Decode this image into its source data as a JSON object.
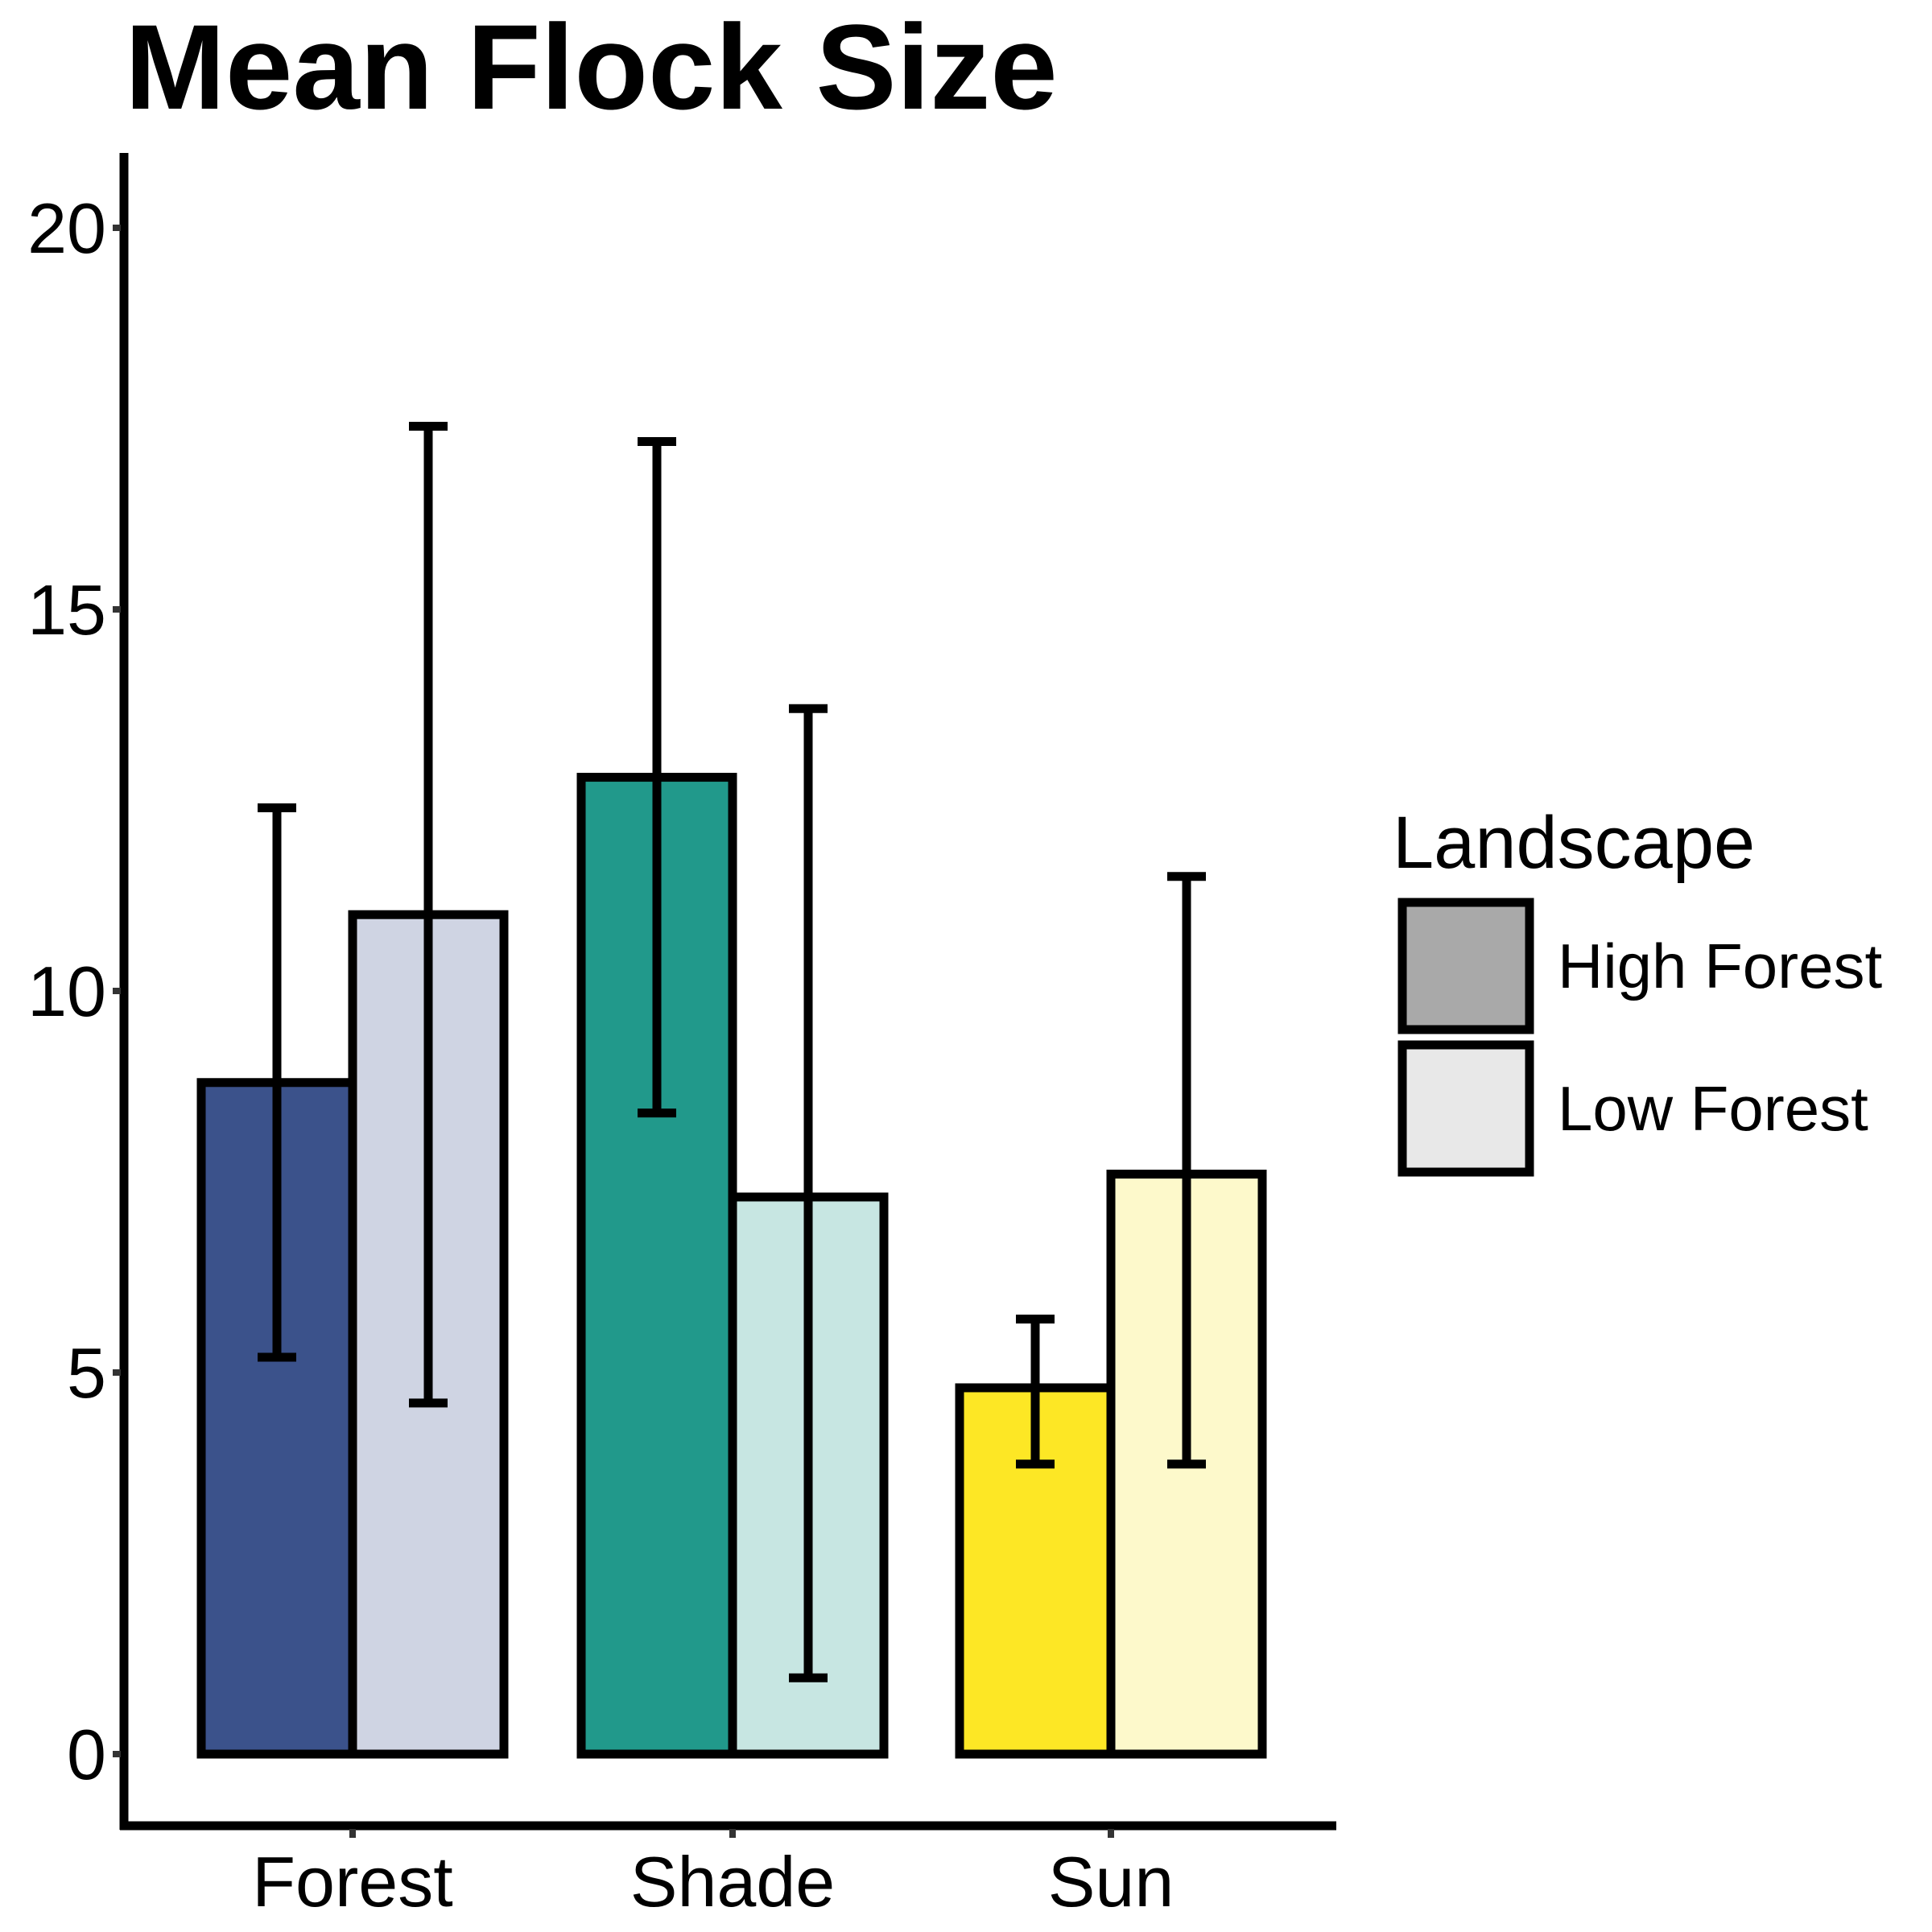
{
  "chart_data": {
    "type": "bar",
    "title": "Mean Flock Size",
    "xlabel": "",
    "ylabel": "",
    "categories": [
      "Forest",
      "Shade",
      "Sun"
    ],
    "ylim": [
      -1.0,
      21.0
    ],
    "yticks": [
      0,
      5,
      10,
      15,
      20
    ],
    "legend": {
      "title": "Landscape",
      "position": "right",
      "entries": [
        {
          "label": "High Forest",
          "color": "#A9A9A9"
        },
        {
          "label": "Low Forest",
          "color": "#E8E8E8"
        }
      ]
    },
    "series": [
      {
        "name": "High Forest",
        "values": [
          8.8,
          12.8,
          4.8
        ],
        "error_low": [
          5.2,
          8.4,
          3.8
        ],
        "error_high": [
          12.4,
          17.2,
          5.7
        ],
        "colors": [
          "#3B528B",
          "#21998B",
          "#FDE725"
        ]
      },
      {
        "name": "Low Forest",
        "values": [
          11.0,
          7.3,
          7.6
        ],
        "error_low": [
          4.6,
          1.0,
          3.8
        ],
        "error_high": [
          17.4,
          13.7,
          11.5
        ],
        "colors": [
          "#CFD4E3",
          "#C7E6E2",
          "#FDF9CB"
        ]
      }
    ],
    "grid": false
  }
}
